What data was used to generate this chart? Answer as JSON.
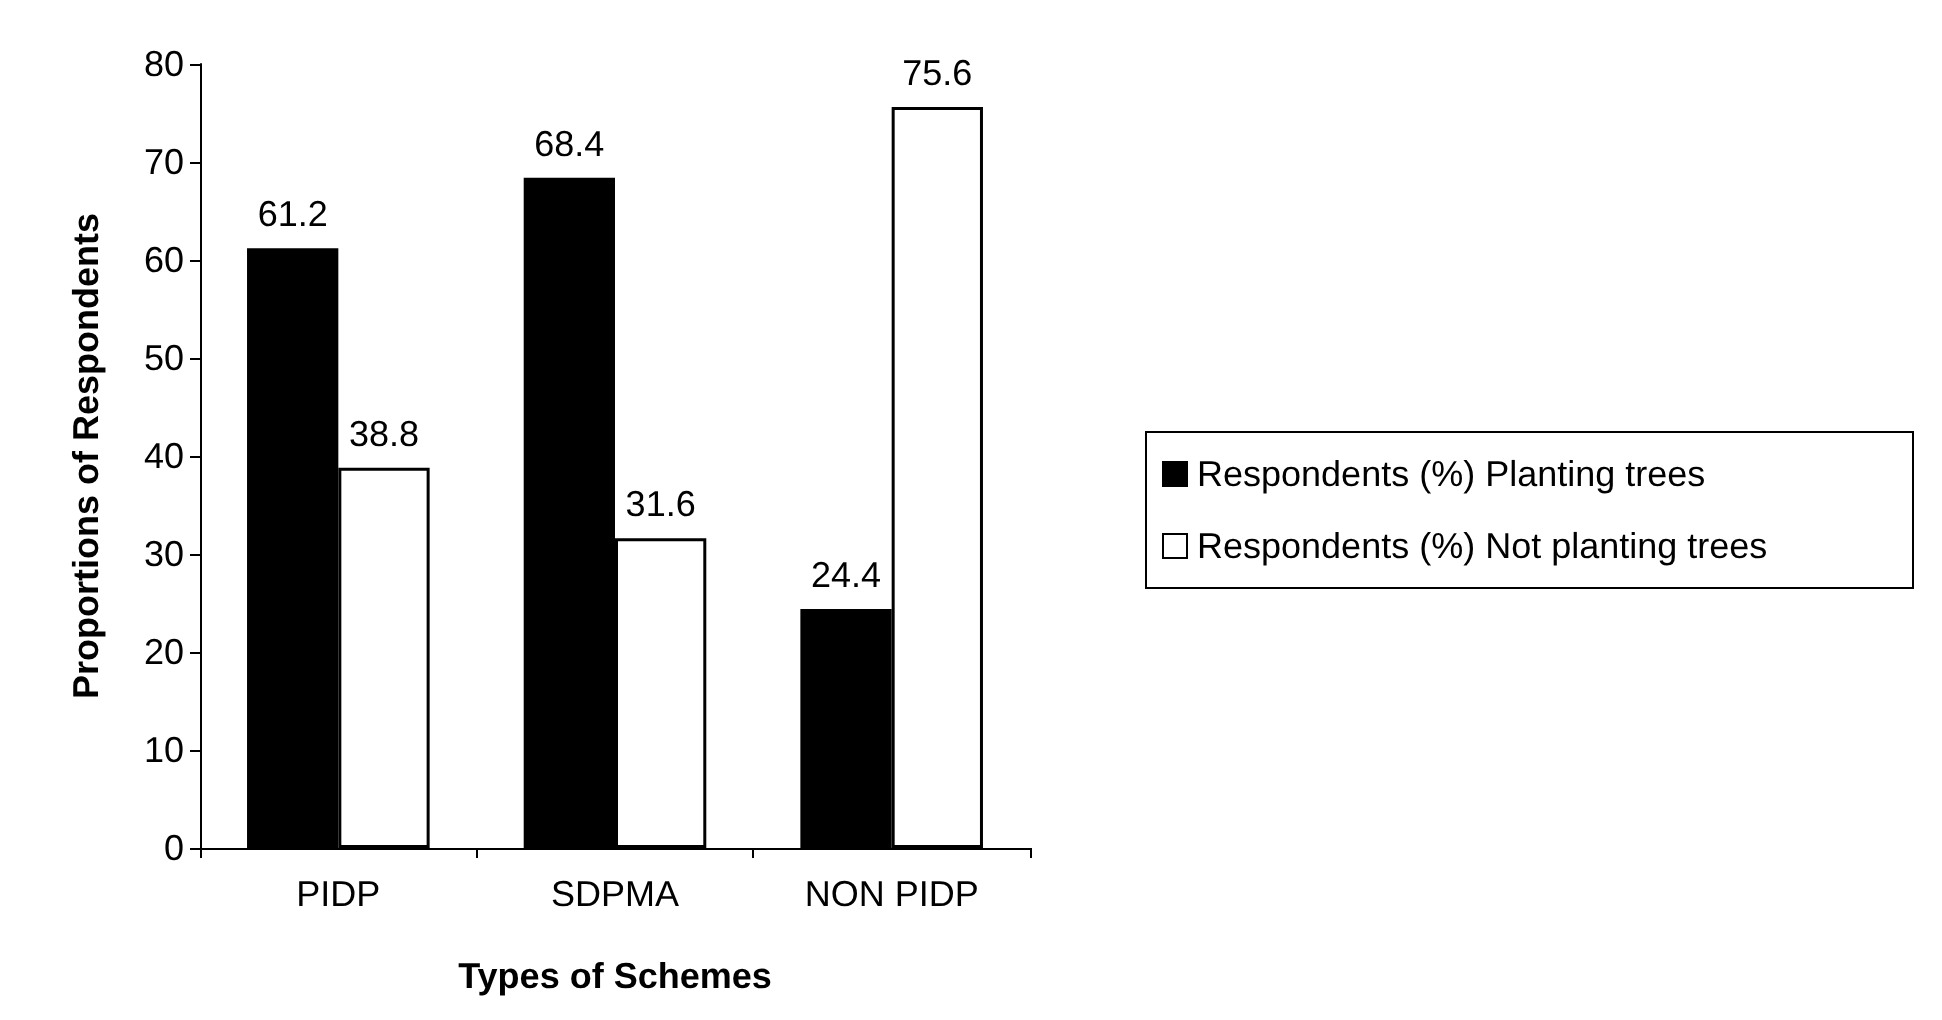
{
  "chart_data": {
    "type": "bar",
    "xlabel": "Types of Schemes",
    "ylabel": "Proportions of Respondents",
    "categories": [
      "PIDP",
      "SDPMA",
      "NON PIDP"
    ],
    "series": [
      {
        "name": "Respondents (%) Planting trees",
        "color": "#000000",
        "values": [
          61.2,
          68.4,
          24.4
        ]
      },
      {
        "name": "Respondents (%) Not planting trees",
        "color": "#ffffff",
        "values": [
          38.8,
          31.6,
          75.6
        ]
      }
    ],
    "ylim": [
      0,
      80
    ],
    "yticks": [
      0,
      10,
      20,
      30,
      40,
      50,
      60,
      70,
      80
    ],
    "data_labels": true,
    "grid": false,
    "legend": "right"
  }
}
